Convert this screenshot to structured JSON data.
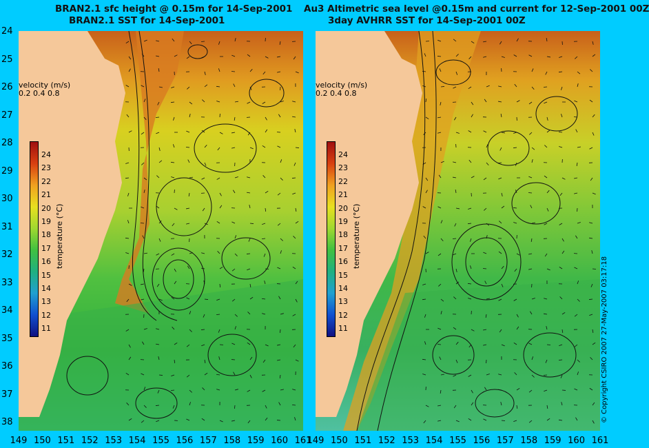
{
  "left_panel": {
    "title_line1": "BRAN2.1 sfc height @ 0.15m for 14-Sep-2001",
    "title_line2": "BRAN2.1 SST for 14-Sep-2001",
    "velocity_label": "velocity (m/s)",
    "velocity_scale": "0.2 0.4 0.8",
    "colorbar_label": "temperature (°C)"
  },
  "right_panel": {
    "title_line1": "Au3 Altimetric sea level  @0.15m and current for 12-Sep-2001 00Z",
    "title_line2": "3day AVHRR SST for 14-Sep-2001 00Z",
    "velocity_label": "velocity (m/s)",
    "velocity_scale": "0.2 0.4 0.8",
    "colorbar_label": "temperature (°C)"
  },
  "latitude_ticks": [
    "24",
    "25",
    "26",
    "27",
    "28",
    "29",
    "30",
    "31",
    "32",
    "33",
    "34",
    "35",
    "36",
    "37",
    "38"
  ],
  "longitude_ticks": [
    "149",
    "150",
    "151",
    "152",
    "153",
    "154",
    "155",
    "156",
    "157",
    "158",
    "159",
    "160",
    "161"
  ],
  "colorbar_ticks": [
    "24",
    "23",
    "22",
    "21",
    "20",
    "19",
    "18",
    "17",
    "16",
    "15",
    "14",
    "13",
    "12",
    "11"
  ],
  "copyright": "© Copyright CSIRO 2007   27-May-2007 03:17:18",
  "colors": {
    "background": "#00ccff",
    "land": "#f5c89a",
    "warm": "#c05a10",
    "mid": "#d8d020",
    "cool": "#30b040",
    "cold": "#40c0c0"
  }
}
